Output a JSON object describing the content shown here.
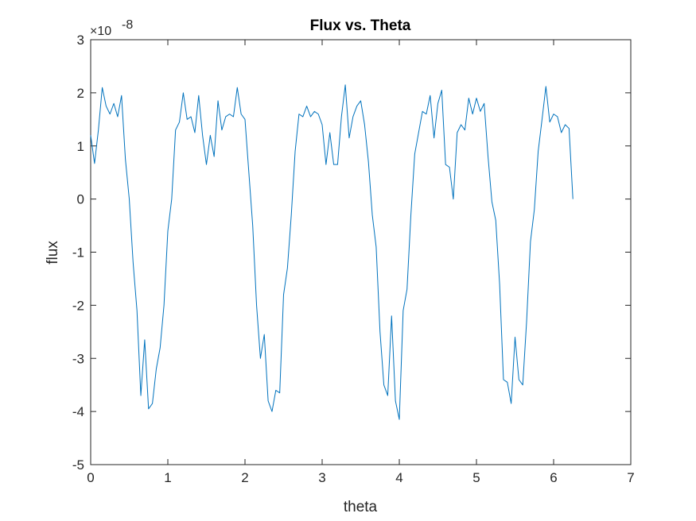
{
  "chart_data": {
    "type": "line",
    "title": "Flux vs. Theta",
    "xlabel": "theta",
    "ylabel": "flux",
    "xlim": [
      0,
      7
    ],
    "ylim": [
      -5e-08,
      3e-08
    ],
    "x_ticks": [
      0,
      1,
      2,
      3,
      4,
      5,
      6,
      7
    ],
    "y_ticks": [
      -5,
      -4,
      -3,
      -2,
      -1,
      0,
      1,
      2,
      3
    ],
    "x_tick_labels": [
      "0",
      "1",
      "2",
      "3",
      "4",
      "5",
      "6",
      "7"
    ],
    "y_tick_labels": [
      "-5",
      "-4",
      "-3",
      "-2",
      "-1",
      "0",
      "1",
      "2",
      "3"
    ],
    "y_exponent_base": "×10",
    "y_exponent_power": "-8",
    "grid": false,
    "series": [
      {
        "color": "#0072BD",
        "x": [
          0,
          0.05,
          0.1,
          0.15,
          0.2,
          0.25,
          0.3,
          0.35,
          0.4,
          0.45,
          0.5,
          0.55,
          0.6,
          0.65,
          0.7,
          0.75,
          0.8,
          0.85,
          0.9,
          0.95,
          1.0,
          1.05,
          1.1,
          1.15,
          1.2,
          1.25,
          1.3,
          1.35,
          1.4,
          1.45,
          1.5,
          1.55,
          1.6,
          1.65,
          1.7,
          1.75,
          1.8,
          1.85,
          1.9,
          1.95,
          2.0,
          2.05,
          2.1,
          2.15,
          2.2,
          2.25,
          2.3,
          2.35,
          2.4,
          2.45,
          2.5,
          2.55,
          2.6,
          2.65,
          2.7,
          2.75,
          2.8,
          2.85,
          2.9,
          2.95,
          3.0,
          3.05,
          3.1,
          3.15,
          3.2,
          3.25,
          3.3,
          3.35,
          3.4,
          3.45,
          3.5,
          3.55,
          3.6,
          3.65,
          3.7,
          3.75,
          3.8,
          3.85,
          3.9,
          3.95,
          4.0,
          4.05,
          4.1,
          4.15,
          4.2,
          4.25,
          4.3,
          4.35,
          4.4,
          4.45,
          4.5,
          4.55,
          4.6,
          4.65,
          4.7,
          4.75,
          4.8,
          4.85,
          4.9,
          4.95,
          5.0,
          5.05,
          5.1,
          5.15,
          5.2,
          5.25,
          5.3,
          5.35,
          5.4,
          5.45,
          5.5,
          5.55,
          5.6,
          5.65,
          5.7,
          5.75,
          5.8,
          5.85,
          5.9,
          5.95,
          6.0,
          6.05,
          6.1,
          6.15,
          6.2,
          6.25
        ],
        "values": [
          1.2e-08,
          6.7e-09,
          1.3e-08,
          2.1e-08,
          1.75e-08,
          1.6e-08,
          1.8e-08,
          1.55e-08,
          1.95e-08,
          7.5e-09,
          0.0,
          -1.2e-08,
          -2.1e-08,
          -3.7e-08,
          -2.65e-08,
          -3.95e-08,
          -3.85e-08,
          -3.2e-08,
          -2.8e-08,
          -2e-08,
          -6e-09,
          0.0,
          1.3e-08,
          1.45e-08,
          2e-08,
          1.5e-08,
          1.55e-08,
          1.25e-08,
          1.95e-08,
          1.2e-08,
          6.5e-09,
          1.2e-08,
          8e-09,
          1.85e-08,
          1.3e-08,
          1.55e-08,
          1.6e-08,
          1.55e-08,
          2.1e-08,
          1.6e-08,
          1.5e-08,
          5e-09,
          -5e-09,
          -2e-08,
          -3e-08,
          -2.55e-08,
          -3.8e-08,
          -4e-08,
          -3.6e-08,
          -3.65e-08,
          -1.8e-08,
          -1.3e-08,
          -3e-09,
          9e-09,
          1.6e-08,
          1.55e-08,
          1.75e-08,
          1.55e-08,
          1.65e-08,
          1.6e-08,
          1.4e-08,
          6.5e-09,
          1.25e-08,
          6.5e-09,
          6.5e-09,
          1.55e-08,
          2.15e-08,
          1.15e-08,
          1.55e-08,
          1.75e-08,
          1.85e-08,
          1.4e-08,
          7e-09,
          -3e-09,
          -9e-09,
          -2.5e-08,
          -3.5e-08,
          -3.7e-08,
          -2.2e-08,
          -3.8e-08,
          -4.15e-08,
          -2.1e-08,
          -1.7e-08,
          -3e-09,
          8.5e-09,
          1.25e-08,
          1.65e-08,
          1.6e-08,
          1.95e-08,
          1.15e-08,
          1.8e-08,
          2.05e-08,
          6.5e-09,
          6e-09,
          0.0,
          1.25e-08,
          1.4e-08,
          1.3e-08,
          1.9e-08,
          1.6e-08,
          1.9e-08,
          1.65e-08,
          1.8e-08,
          8e-09,
          -5e-10,
          -4e-09,
          -1.6e-08,
          -3.4e-08,
          -3.45e-08,
          -3.85e-08,
          -2.6e-08,
          -3.4e-08,
          -3.5e-08,
          -2.3e-08,
          -8e-09,
          -2e-09,
          9e-09,
          1.5e-08,
          2.12e-08,
          1.45e-08,
          1.6e-08,
          1.55e-08,
          1.25e-08,
          1.4e-08,
          1.33e-08,
          0.0
        ]
      }
    ]
  }
}
